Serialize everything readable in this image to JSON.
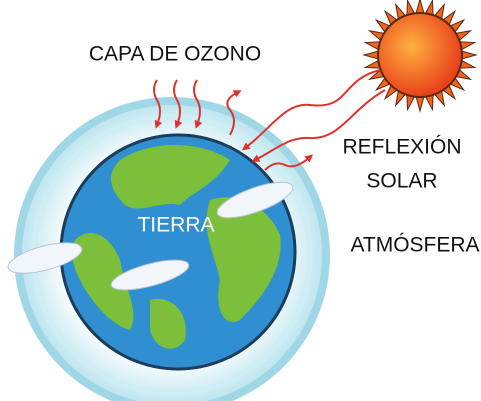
{
  "labels": {
    "ozone_layer": "CAPA DE OZONO",
    "solar_reflection": [
      "REFLEXIÓN",
      "SOLAR"
    ],
    "atmosphere": "ATMÓSFERA",
    "earth": "TIERRA"
  }
}
